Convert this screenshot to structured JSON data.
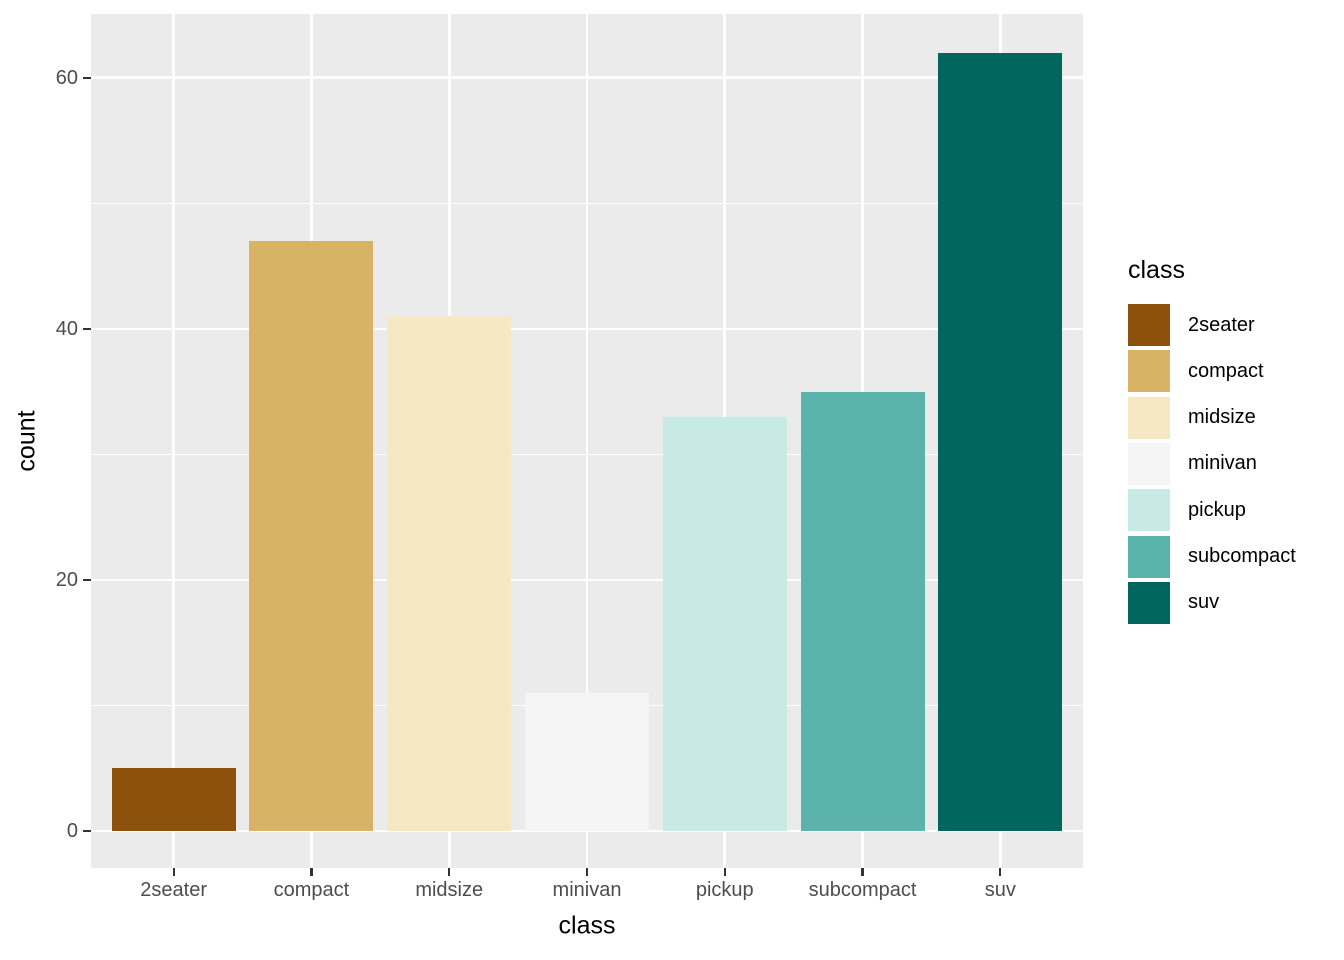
{
  "chart_data": {
    "type": "bar",
    "title": "",
    "xlabel": "class",
    "ylabel": "count",
    "categories": [
      "2seater",
      "compact",
      "midsize",
      "minivan",
      "pickup",
      "subcompact",
      "suv"
    ],
    "values": [
      5,
      47,
      41,
      11,
      33,
      35,
      62
    ],
    "bar_colors": [
      "#8C510A",
      "#D8B365",
      "#F6E8C3",
      "#F5F5F5",
      "#C7EAE5",
      "#5AB4AC",
      "#01665E"
    ],
    "ylim": [
      0,
      65
    ],
    "yticks": [
      0,
      20,
      40,
      60
    ],
    "ytick_labels": [
      "0",
      "20",
      "40",
      "60"
    ],
    "yticks_minor": [
      10,
      30,
      50
    ],
    "grid": true,
    "legend_position": "right",
    "legend": {
      "title": "class",
      "entries": [
        {
          "label": "2seater",
          "color": "#8C510A"
        },
        {
          "label": "compact",
          "color": "#D8B365"
        },
        {
          "label": "midsize",
          "color": "#F6E8C3"
        },
        {
          "label": "minivan",
          "color": "#F5F5F5"
        },
        {
          "label": "pickup",
          "color": "#C7EAE5"
        },
        {
          "label": "subcompact",
          "color": "#5AB4AC"
        },
        {
          "label": "suv",
          "color": "#01665E"
        }
      ]
    }
  },
  "theme": {
    "background": "#FFFFFF",
    "panel_background": "#EBEBEB",
    "grid_major_color": "#FFFFFF",
    "grid_minor_color": "#FFFFFF",
    "tick_mark_color": "#333333",
    "tick_label_color": "#4D4D4D",
    "axis_title_color": "#000000",
    "legend_title_color": "#000000",
    "legend_text_color": "#000000"
  }
}
